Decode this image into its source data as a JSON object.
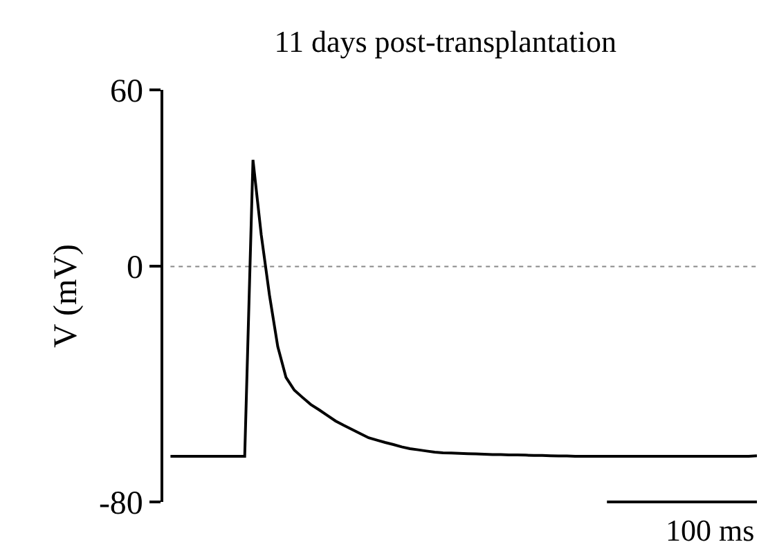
{
  "chart_data": {
    "type": "line",
    "title": "11 days post-transplantation",
    "ylabel": "V (mV)",
    "categories": [
      null,
      null,
      null,
      null,
      null,
      null,
      null,
      null,
      null,
      null,
      null,
      null,
      null,
      null,
      null,
      null,
      null,
      null,
      null,
      null,
      null,
      null,
      null,
      null,
      null,
      null,
      null,
      null,
      null,
      null,
      null,
      null,
      null,
      null,
      null,
      null,
      null,
      null,
      null,
      null,
      null,
      null,
      null,
      null,
      null,
      null,
      null,
      null,
      null,
      null,
      null,
      null,
      null,
      null,
      null,
      null,
      null,
      null,
      null,
      null,
      null,
      null,
      null,
      null,
      null,
      null,
      null,
      null,
      null,
      null,
      null,
      null
    ],
    "ylim": [
      -80,
      60
    ],
    "yticks": [
      -80,
      0,
      60
    ],
    "grid": false,
    "ref_lines": [
      {
        "axis": "y",
        "value": 0,
        "color": "#888888",
        "line_style": "dotted"
      }
    ],
    "annotations": [
      "100 ms"
    ],
    "series": [
      {
        "color": "#000000",
        "values": [
          -64.5,
          -64.5,
          -64.5,
          -64.5,
          -64.5,
          -64.5,
          -64.5,
          -64.5,
          -64.5,
          -64.5,
          36.2,
          10.8,
          -9.8,
          -27.2,
          -37.7,
          -42.0,
          -44.5,
          -46.9,
          -48.7,
          -50.6,
          -52.5,
          -54.0,
          -55.4,
          -56.8,
          -58.2,
          -59.0,
          -59.8,
          -60.5,
          -61.3,
          -61.9,
          -62.3,
          -62.7,
          -63.1,
          -63.3,
          -63.4,
          -63.5,
          -63.6,
          -63.7,
          -63.8,
          -63.9,
          -63.9,
          -64.0,
          -64.0,
          -64.1,
          -64.2,
          -64.2,
          -64.3,
          -64.4,
          -64.4,
          -64.5,
          -64.5,
          -64.5,
          -64.5,
          -64.5,
          -64.5,
          -64.5,
          -64.5,
          -64.5,
          -64.5,
          -64.5,
          -64.5,
          -64.5,
          -64.5,
          -64.5,
          -64.5,
          -64.5,
          -64.5,
          -64.5,
          -64.5,
          -64.5,
          -64.5,
          -64.3
        ]
      }
    ]
  }
}
